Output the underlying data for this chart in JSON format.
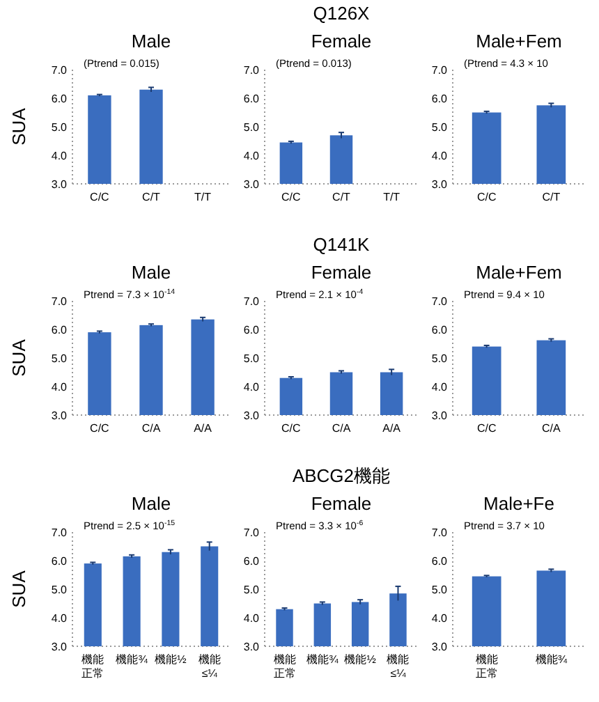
{
  "chart_data": [
    {
      "type": "bar",
      "title": "Male",
      "ylabel": "SUA",
      "annotations": [
        "(Ptrend = 0.015)"
      ],
      "categories": [
        "C/C",
        "C/T",
        "T/T"
      ],
      "values": [
        6.1,
        6.3,
        null
      ],
      "errors": [
        0.03,
        0.08,
        null
      ],
      "color": "#3a6dbf",
      "ylim": [
        3,
        7
      ],
      "yticks": [
        {
          "value": 3,
          "label": "3.0"
        },
        {
          "value": 4,
          "label": "4.0"
        },
        {
          "value": 5,
          "label": "5.0"
        },
        {
          "value": 6,
          "label": "6.0"
        },
        {
          "value": 7,
          "label": "7.0"
        }
      ]
    },
    {
      "type": "bar",
      "title": "Q126X",
      "subtitle": "Female",
      "annotations": [
        "(Ptrend = 0.013)"
      ],
      "categories": [
        "C/C",
        "C/T",
        "T/T"
      ],
      "values": [
        4.45,
        4.7,
        null
      ],
      "errors": [
        0.04,
        0.1,
        null
      ],
      "color": "#3a6dbf",
      "ylim": [
        3,
        7
      ],
      "yticks": [
        {
          "value": 3,
          "label": "3.0"
        },
        {
          "value": 4,
          "label": "4.0"
        },
        {
          "value": 5,
          "label": "5.0"
        },
        {
          "value": 6,
          "label": "6.0"
        },
        {
          "value": 7,
          "label": "7.0"
        }
      ]
    },
    {
      "type": "bar",
      "title": "Male+Fem",
      "annotations": [
        "(Ptrend = 4.3 × 10"
      ],
      "categories": [
        "C/C",
        "C/T"
      ],
      "values": [
        5.5,
        5.75
      ],
      "errors": [
        0.04,
        0.07
      ],
      "color": "#3a6dbf",
      "ylim": [
        3,
        7
      ],
      "yticks": [
        {
          "value": 3,
          "label": "3.0"
        },
        {
          "value": 4,
          "label": "4.0"
        },
        {
          "value": 5,
          "label": "5.0"
        },
        {
          "value": 6,
          "label": "6.0"
        },
        {
          "value": 7,
          "label": "7.0"
        }
      ]
    },
    {
      "type": "bar",
      "title": "Male",
      "ylabel": "SUA",
      "annotations": [
        "Ptrend = 7.3 × 10$^{-14}$"
      ],
      "categories": [
        "C/C",
        "C/A",
        "A/A"
      ],
      "values": [
        5.9,
        6.15,
        6.35
      ],
      "errors": [
        0.04,
        0.04,
        0.07
      ],
      "color": "#3a6dbf",
      "ylim": [
        3,
        7
      ],
      "yticks": [
        {
          "value": 3,
          "label": "3.0"
        },
        {
          "value": 4,
          "label": "4.0"
        },
        {
          "value": 5,
          "label": "5.0"
        },
        {
          "value": 6,
          "label": "6.0"
        },
        {
          "value": 7,
          "label": "7.0"
        }
      ]
    },
    {
      "type": "bar",
      "title": "Q141K",
      "subtitle": "Female",
      "annotations": [
        "Ptrend = 2.1 × 10$^{-4}$"
      ],
      "categories": [
        "C/C",
        "C/A",
        "A/A"
      ],
      "values": [
        4.3,
        4.5,
        4.5
      ],
      "errors": [
        0.04,
        0.05,
        0.1
      ],
      "color": "#3a6dbf",
      "ylim": [
        3,
        7
      ],
      "yticks": [
        {
          "value": 3,
          "label": "3.0"
        },
        {
          "value": 4,
          "label": "4.0"
        },
        {
          "value": 5,
          "label": "5.0"
        },
        {
          "value": 6,
          "label": "6.0"
        },
        {
          "value": 7,
          "label": "7.0"
        }
      ]
    },
    {
      "type": "bar",
      "title": "Male+Fem",
      "annotations": [
        "Ptrend = 9.4 × 10"
      ],
      "categories": [
        "C/C",
        "C/A"
      ],
      "values": [
        5.4,
        5.62
      ],
      "errors": [
        0.04,
        0.05
      ],
      "color": "#3a6dbf",
      "ylim": [
        3,
        7
      ],
      "yticks": [
        {
          "value": 3,
          "label": "3.0"
        },
        {
          "value": 4,
          "label": "4.0"
        },
        {
          "value": 5,
          "label": "5.0"
        },
        {
          "value": 6,
          "label": "6.0"
        },
        {
          "value": 7,
          "label": "7.0"
        }
      ]
    },
    {
      "type": "bar",
      "title": "Male",
      "ylabel": "SUA",
      "annotations": [
        "Ptrend = 2.5 × 10$^{-15}$"
      ],
      "categories": [
        "機能正常",
        "機能¾",
        "機能½",
        "機能≤¼"
      ],
      "values": [
        5.9,
        6.15,
        6.3,
        6.5
      ],
      "errors": [
        0.04,
        0.05,
        0.08,
        0.15
      ],
      "color": "#3a6dbf",
      "ylim": [
        3,
        7
      ],
      "yticks": [
        {
          "value": 3,
          "label": "3.0"
        },
        {
          "value": 4,
          "label": "4.0"
        },
        {
          "value": 5,
          "label": "5.0"
        },
        {
          "value": 6,
          "label": "6.0"
        },
        {
          "value": 7,
          "label": "7.0"
        }
      ]
    },
    {
      "type": "bar",
      "title": "ABCG2機能",
      "subtitle": "Female",
      "annotations": [
        "Ptrend = 3.3 × 10$^{-6}$"
      ],
      "categories": [
        "機能正常",
        "機能¾",
        "機能½",
        "機能≤¼"
      ],
      "values": [
        4.3,
        4.5,
        4.55,
        4.85
      ],
      "errors": [
        0.04,
        0.05,
        0.08,
        0.25
      ],
      "color": "#3a6dbf",
      "ylim": [
        3,
        7
      ],
      "yticks": [
        {
          "value": 3,
          "label": "3.0"
        },
        {
          "value": 4,
          "label": "4.0"
        },
        {
          "value": 5,
          "label": "5.0"
        },
        {
          "value": 6,
          "label": "6.0"
        },
        {
          "value": 7,
          "label": "7.0"
        }
      ]
    },
    {
      "type": "bar",
      "title": "Male+Fe",
      "annotations": [
        "Ptrend = 3.7 × 10"
      ],
      "categories": [
        "機能正常",
        "機能¾"
      ],
      "values": [
        5.45,
        5.65
      ],
      "errors": [
        0.03,
        0.05
      ],
      "color": "#3a6dbf",
      "ylim": [
        3,
        7
      ],
      "yticks": [
        {
          "value": 3,
          "label": "3.0"
        },
        {
          "value": 4,
          "label": "4.0"
        },
        {
          "value": 5,
          "label": "5.0"
        },
        {
          "value": 6,
          "label": "6.0"
        },
        {
          "value": 7,
          "label": "7.0"
        }
      ]
    }
  ]
}
